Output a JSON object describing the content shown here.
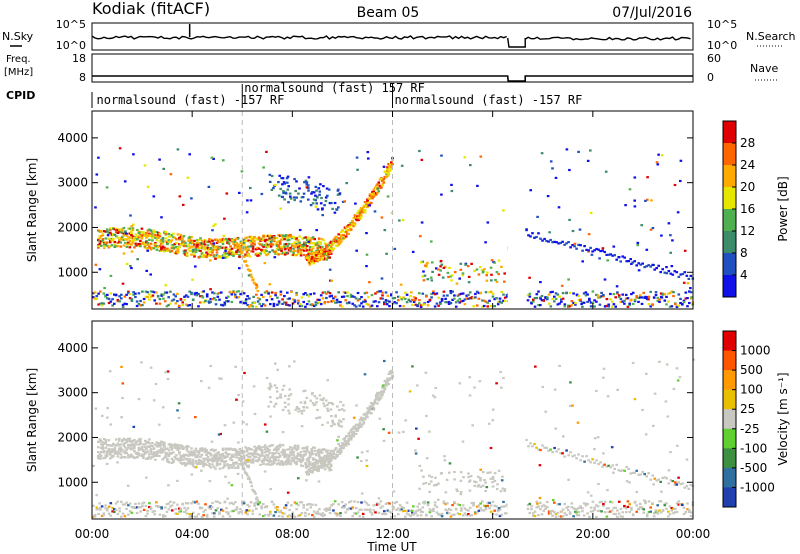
{
  "header": {
    "station": "Kodiak (fitACF)",
    "beam": "Beam 05",
    "date": "07/Jul/2016"
  },
  "noise_panel": {
    "left_label": "N.Sky",
    "right_label": "N.Search",
    "left_ticks": [
      "10^5",
      "10^0"
    ],
    "right_ticks": [
      "10^5",
      "10^0"
    ]
  },
  "freq_panel": {
    "left_label_line1": "Freq.",
    "left_label_line2": "[MHz]",
    "right_label": "Nave",
    "left_ticks": [
      "18",
      "8"
    ],
    "right_ticks": [
      "60",
      "0"
    ]
  },
  "cpid": {
    "label": "CPID",
    "segments": [
      {
        "start_hour": 0.1,
        "text": "normalsound (fast) -157 RF",
        "row": "low"
      },
      {
        "start_hour": 6.0,
        "text": "normalsound (fast) 157 RF",
        "row": "high"
      },
      {
        "start_hour": 12.0,
        "text": "normalsound (fast) -157 RF",
        "row": "low"
      }
    ]
  },
  "x_axis": {
    "label": "Time UT",
    "ticks": [
      "00:00",
      "04:00",
      "08:00",
      "12:00",
      "16:00",
      "20:00",
      "00:00"
    ],
    "tick_hours": [
      0,
      4,
      8,
      12,
      16,
      20,
      24
    ],
    "range": [
      0,
      24
    ]
  },
  "chart_data": [
    {
      "type": "heatmap",
      "name_key": "power",
      "ylabel": "Slant Range [km]",
      "ylim": [
        180,
        4600
      ],
      "yticks": [
        "1000",
        "2000",
        "3000",
        "4000"
      ],
      "ytick_values": [
        1000,
        2000,
        3000,
        4000
      ],
      "colorbar": {
        "label": "Power [dB]",
        "ticks": [
          "4",
          "8",
          "12",
          "16",
          "20",
          "24",
          "28"
        ],
        "colors": [
          "#1010e8",
          "#2050c0",
          "#3c8c6c",
          "#50b050",
          "#e6e600",
          "#ffaa00",
          "#ff6600",
          "#e00000"
        ]
      }
    },
    {
      "type": "heatmap",
      "name_key": "velocity",
      "ylabel": "Slant Range [km]",
      "ylim": [
        180,
        4600
      ],
      "yticks": [
        "1000",
        "2000",
        "3000",
        "4000"
      ],
      "ytick_values": [
        1000,
        2000,
        3000,
        4000
      ],
      "colorbar": {
        "label": "Velocity [m s⁻¹]",
        "ticks": [
          "1000",
          "500",
          "100",
          "25",
          "-25",
          "-100",
          "-500",
          "-1000"
        ],
        "colors": [
          "#2040b0",
          "#3070a0",
          "#3c9040",
          "#60d030",
          "#c8c8c0",
          "#e8c000",
          "#ff9900",
          "#ff5500",
          "#e00000"
        ]
      }
    }
  ]
}
